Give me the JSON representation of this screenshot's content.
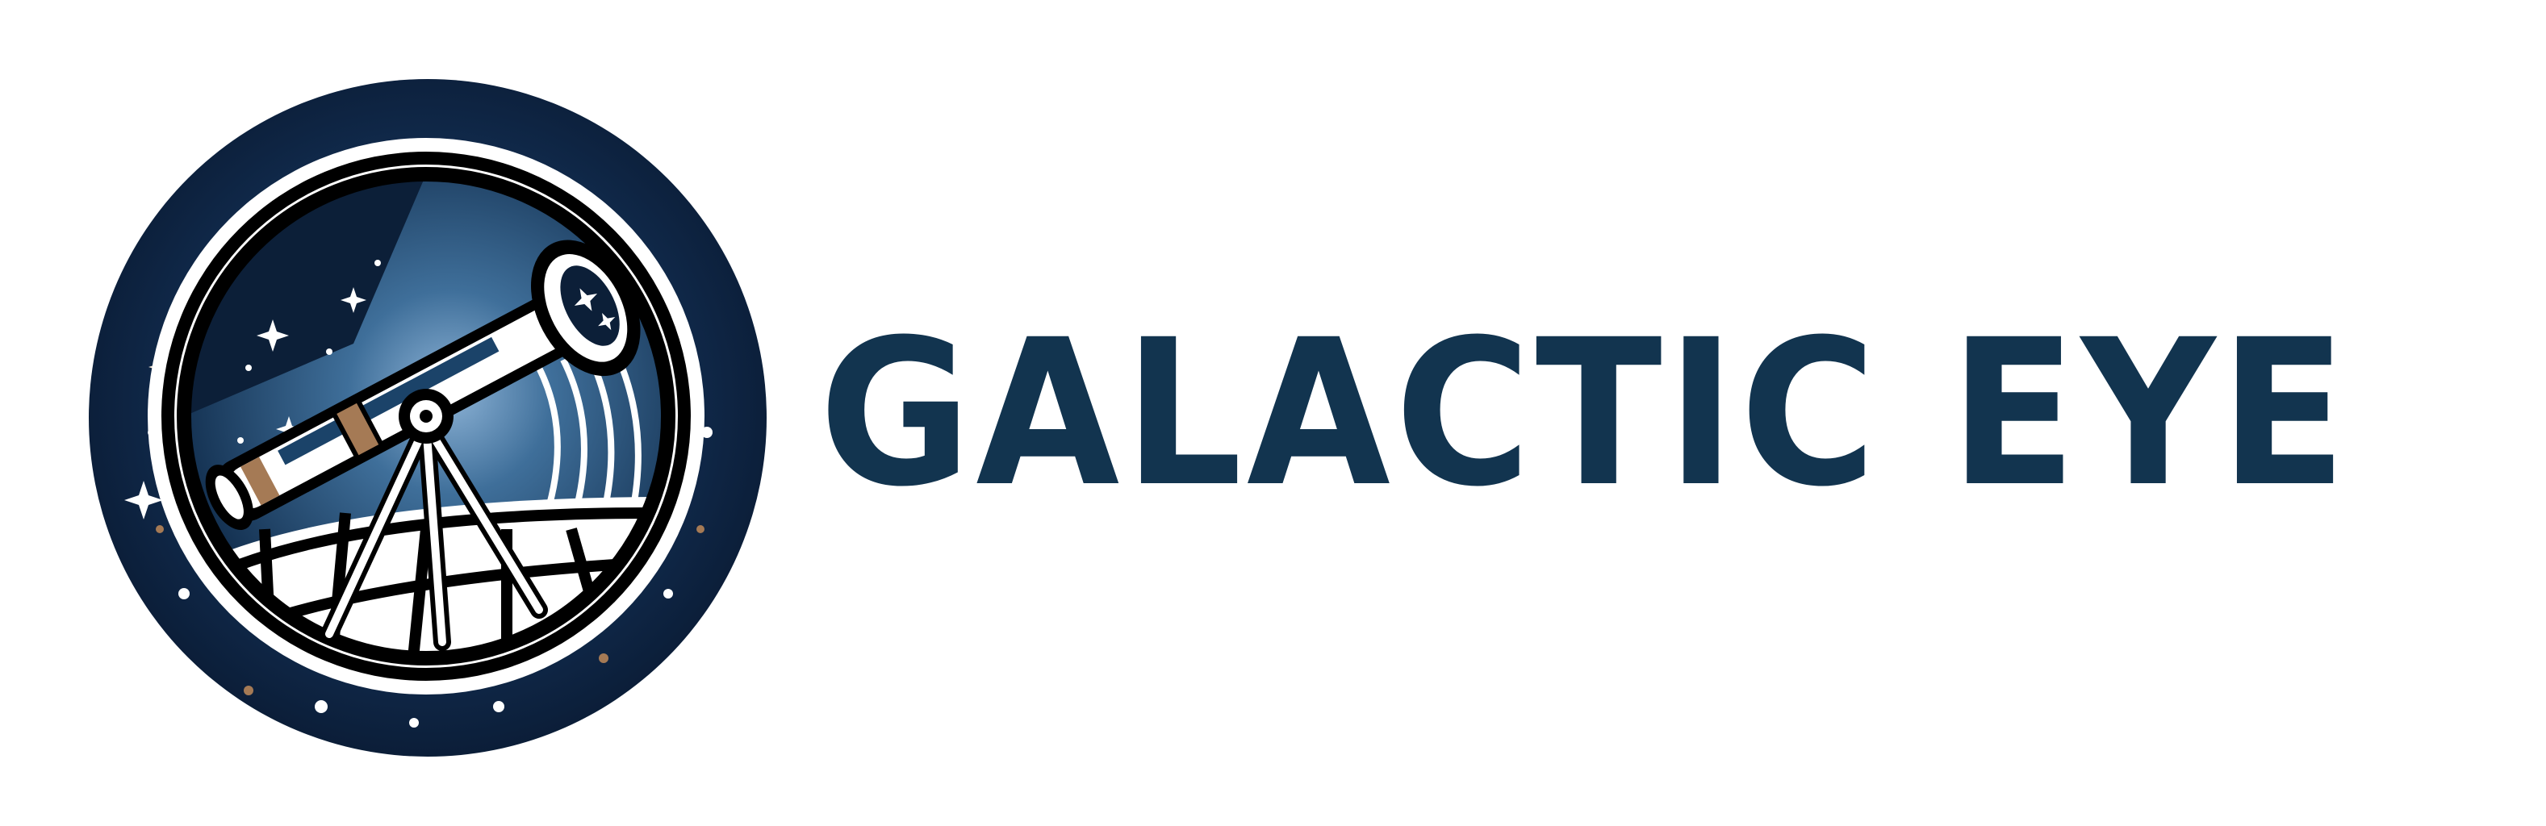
{
  "brand": {
    "name": "GALACTIC EYE",
    "emblem": "telescope-on-tripod-inside-starry-night-circle",
    "colors": {
      "wordmark": "#12344f",
      "emblem_dark": "#0d2140",
      "emblem_mid": "#1b4369",
      "emblem_light": "#6f9cc4",
      "accent": "#a57a55",
      "background": "#ffffff"
    }
  }
}
